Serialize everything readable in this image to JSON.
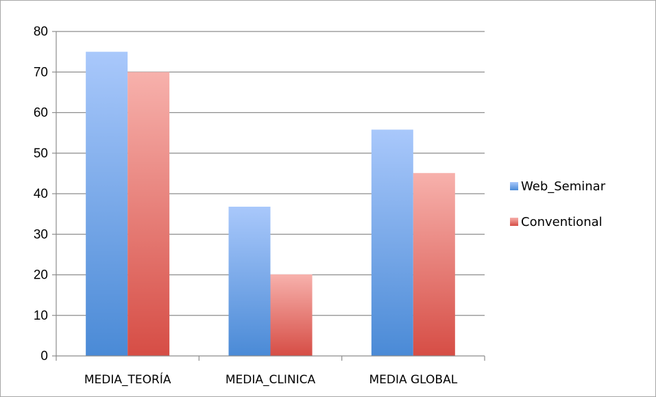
{
  "chart_data": {
    "type": "bar",
    "categories": [
      "MEDIA_TEORÍA",
      "MEDIA_CLINICA",
      "MEDIA GLOBAL"
    ],
    "series": [
      {
        "name": "Web_Seminar",
        "values": [
          75,
          36.8,
          55.8
        ],
        "color_top": "#a9c8fb",
        "color_bottom": "#4a8ad6"
      },
      {
        "name": "Conventional",
        "values": [
          70,
          20.1,
          45.1
        ],
        "color_top": "#f7b1ac",
        "color_bottom": "#d64d45"
      }
    ],
    "ylim": [
      0,
      80
    ],
    "yticks": [
      0,
      10,
      20,
      30,
      40,
      50,
      60,
      70,
      80
    ],
    "grid": true,
    "legend_position": "right",
    "title": "",
    "xlabel": "",
    "ylabel": ""
  }
}
